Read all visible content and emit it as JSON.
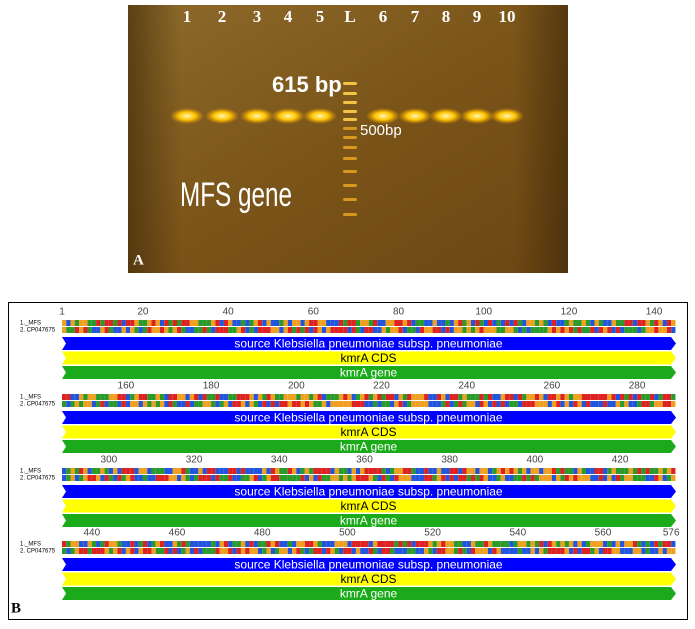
{
  "panel_a": {
    "label": "A",
    "lanes": [
      "1",
      "2",
      "3",
      "4",
      "5",
      "L",
      "6",
      "7",
      "8",
      "9",
      "10"
    ],
    "band_label": "615 bp",
    "ladder_label": "500bp",
    "gene_label": "MFS gene"
  },
  "panel_b": {
    "label": "B",
    "sequences": [
      "1._MFS",
      "2. CP047675"
    ],
    "blocks": [
      {
        "ruler": [
          1,
          20,
          40,
          60,
          80,
          100,
          120,
          140
        ]
      },
      {
        "ruler": [
          160,
          180,
          200,
          220,
          240,
          260,
          280
        ]
      },
      {
        "ruler": [
          300,
          320,
          340,
          360,
          380,
          400,
          420
        ]
      },
      {
        "ruler": [
          440,
          460,
          480,
          500,
          520,
          540,
          560,
          576
        ]
      }
    ],
    "features": [
      "source Klebsiella pneumoniae subsp. pneumoniae",
      "kmrA CDS",
      "kmrA gene"
    ]
  }
}
